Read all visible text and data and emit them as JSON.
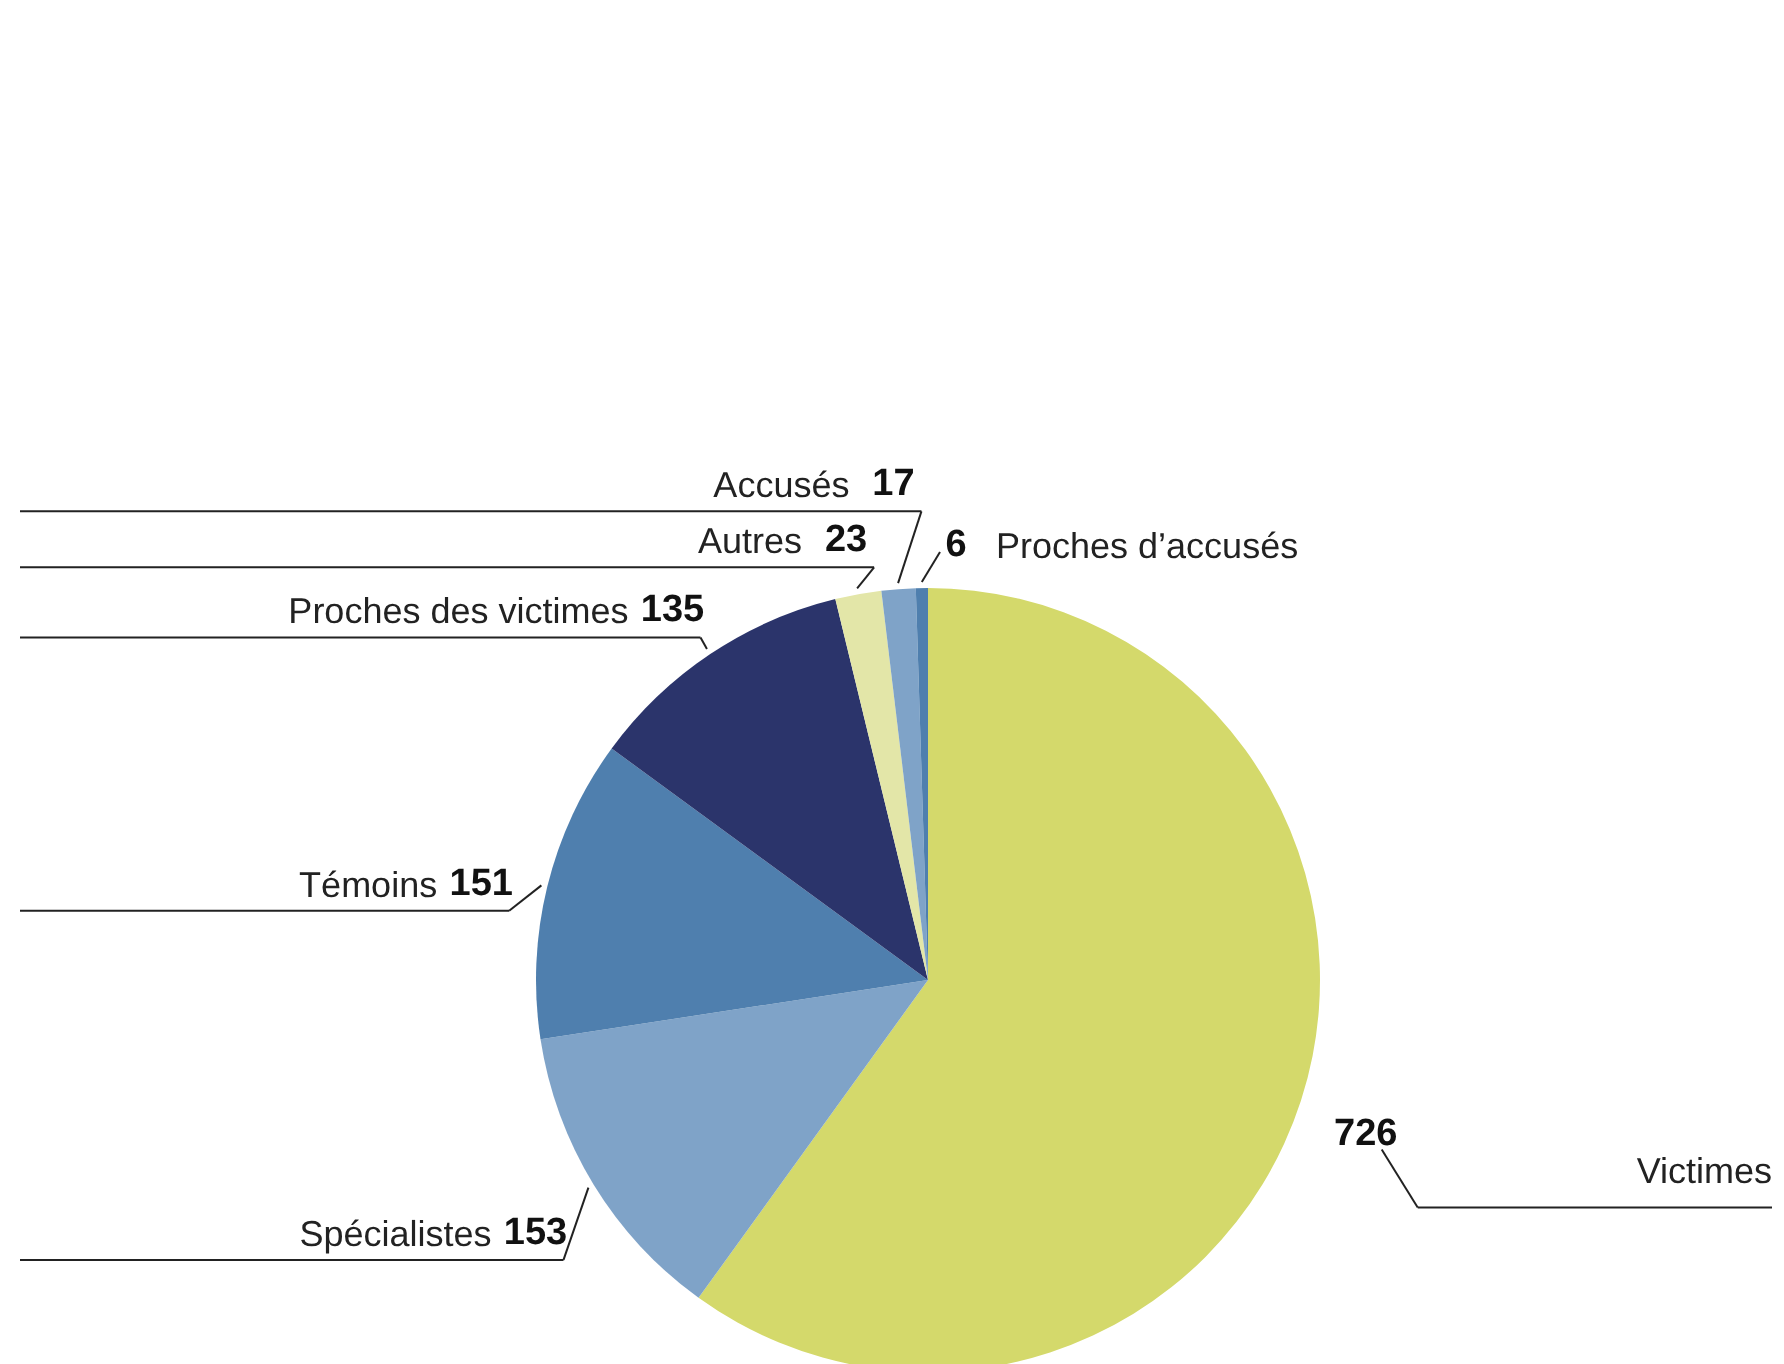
{
  "chart_data": {
    "type": "pie",
    "categories": [
      "Victimes",
      "Spécialistes",
      "Témoins",
      "Proches des victimes",
      "Autres",
      "Accusés",
      "Proches d’accusés"
    ],
    "values": [
      726,
      153,
      151,
      135,
      23,
      17,
      6
    ],
    "colors": [
      "#d4d96b",
      "#7fa3c8",
      "#4f7fae",
      "#2b346b",
      "#e3e6a8",
      "#7fa3c8",
      "#4f7fae"
    ],
    "data_labels": true
  }
}
